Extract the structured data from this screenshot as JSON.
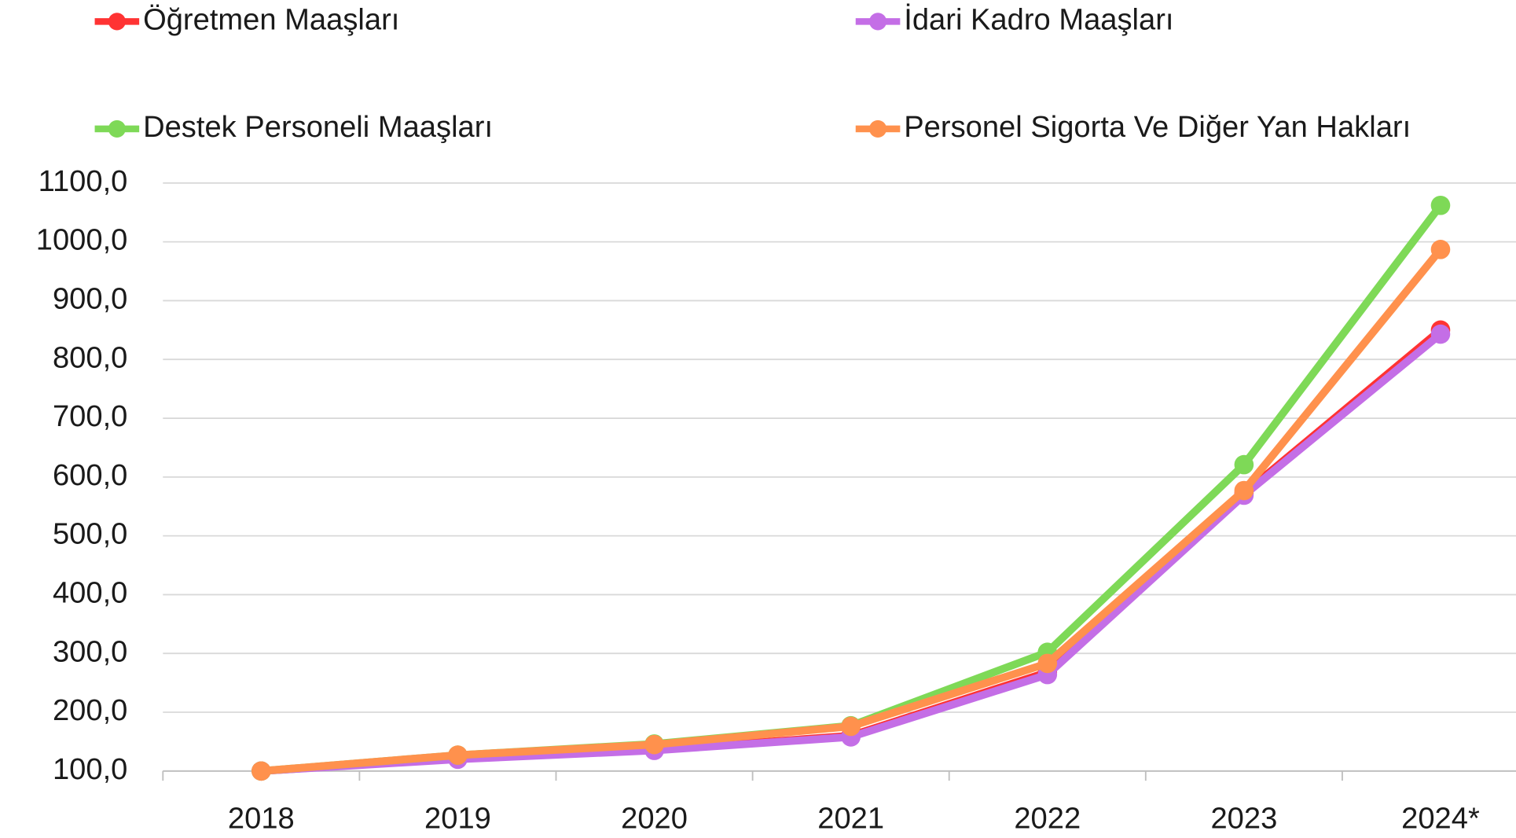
{
  "chart_data": {
    "type": "line",
    "categories": [
      "2018",
      "2019",
      "2020",
      "2021",
      "2022",
      "2023",
      "2024*"
    ],
    "series": [
      {
        "name": "Öğretmen Maaşları",
        "color": "#ff3333",
        "values": [
          100,
          121,
          136,
          160,
          268,
          572,
          850
        ]
      },
      {
        "name": "İdari Kadro Maaşları",
        "color": "#c46ee6",
        "values": [
          100,
          120,
          135,
          158,
          264,
          569,
          843
        ]
      },
      {
        "name": "Destek Personeli Maaşları",
        "color": "#7ed957",
        "values": [
          100,
          127,
          146,
          177,
          302,
          621,
          1062
        ]
      },
      {
        "name": "Personel Sigorta Ve Diğer Yan Hakları",
        "color": "#ff914d",
        "values": [
          100,
          127,
          145,
          176,
          283,
          577,
          987
        ]
      }
    ],
    "ylim": [
      100,
      1100
    ],
    "yticks": [
      {
        "value": 100,
        "label": "100,0"
      },
      {
        "value": 200,
        "label": "200,0"
      },
      {
        "value": 300,
        "label": "300,0"
      },
      {
        "value": 400,
        "label": "400,0"
      },
      {
        "value": 500,
        "label": "500,0"
      },
      {
        "value": 600,
        "label": "600,0"
      },
      {
        "value": 700,
        "label": "700,0"
      },
      {
        "value": 800,
        "label": "800,0"
      },
      {
        "value": 900,
        "label": "900,0"
      },
      {
        "value": 1000,
        "label": "1000,0"
      },
      {
        "value": 1100,
        "label": "1100,0"
      }
    ],
    "grid": true,
    "legend": "top"
  }
}
